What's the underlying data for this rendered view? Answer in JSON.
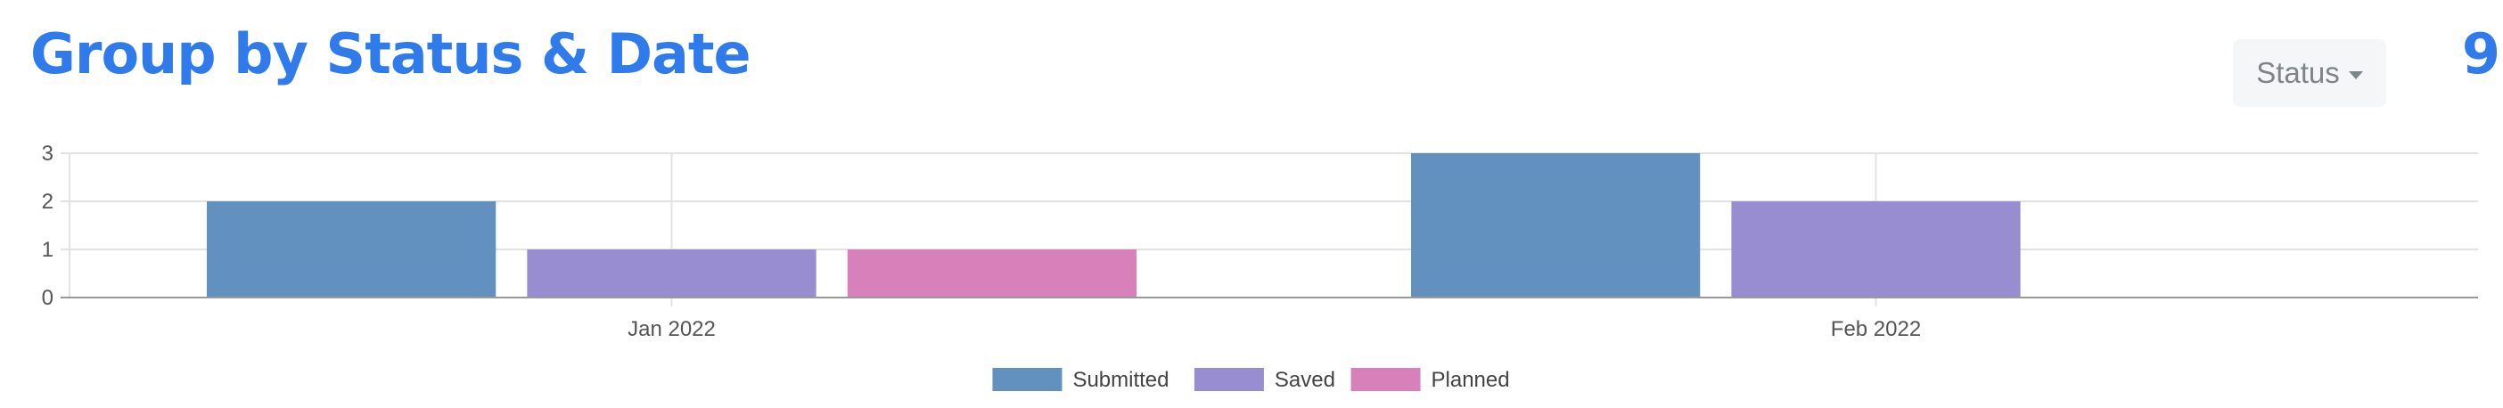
{
  "header": {
    "title": "Group by Status & Date",
    "status_button": "Status",
    "count": "9"
  },
  "colors": {
    "accent": "#2f7bec",
    "Submitted": "#6391bf",
    "Saved": "#978dd0",
    "Planned": "#d880b9"
  },
  "icons": {
    "dropdown": "caret-down-icon"
  },
  "chart_data": {
    "type": "bar",
    "title": "",
    "xlabel": "",
    "ylabel": "",
    "categories": [
      "Jan 2022",
      "Feb 2022"
    ],
    "series": [
      {
        "name": "Submitted",
        "values": [
          2,
          3
        ]
      },
      {
        "name": "Saved",
        "values": [
          1,
          2
        ]
      },
      {
        "name": "Planned",
        "values": [
          1,
          0
        ]
      }
    ],
    "ylim": [
      0,
      3
    ],
    "yticks": [
      "0",
      "1",
      "2",
      "3"
    ],
    "grid": true,
    "legend": "bottom"
  }
}
